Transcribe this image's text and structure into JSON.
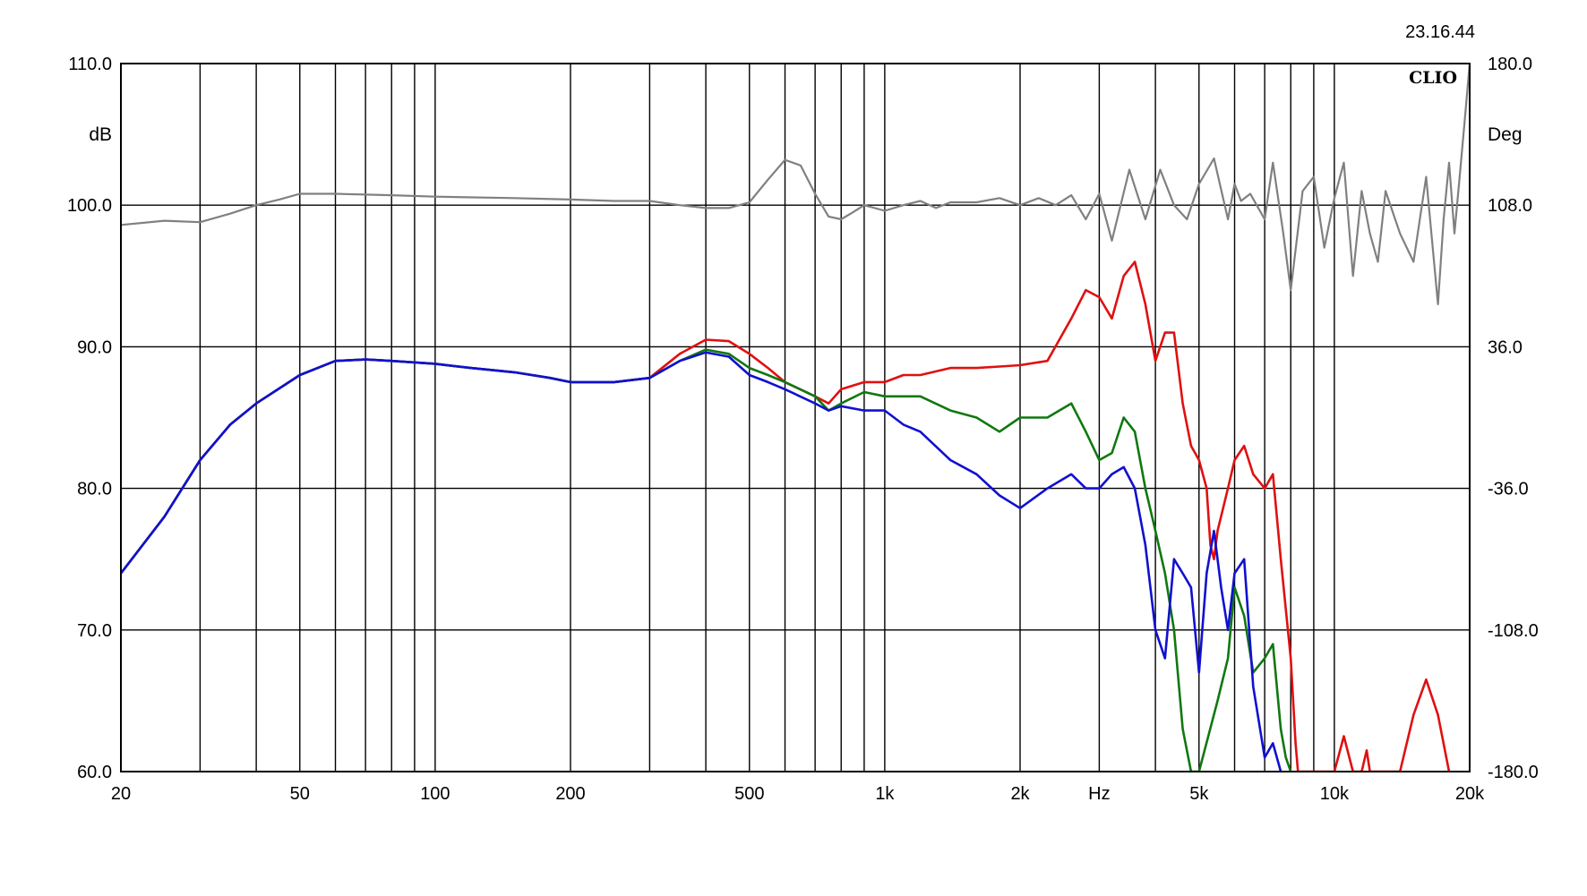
{
  "timestamp": "23.16.44",
  "brand": "CLIO",
  "chart_data": {
    "type": "line",
    "x_scale": "log",
    "xlim": [
      20,
      20000
    ],
    "ylim": [
      60,
      110
    ],
    "y2lim": [
      -180,
      180
    ],
    "xlabel": "Hz",
    "ylabel": "dB",
    "y2label": "Deg",
    "x_ticks": [
      {
        "value": 20,
        "label": "20"
      },
      {
        "value": 50,
        "label": "50"
      },
      {
        "value": 100,
        "label": "100"
      },
      {
        "value": 200,
        "label": "200"
      },
      {
        "value": 500,
        "label": "500"
      },
      {
        "value": 1000,
        "label": "1k"
      },
      {
        "value": 2000,
        "label": "2k"
      },
      {
        "value": 5000,
        "label": "5k"
      },
      {
        "value": 10000,
        "label": "10k"
      },
      {
        "value": 20000,
        "label": "20k"
      }
    ],
    "y_ticks": [
      "60.0",
      "70.0",
      "80.0",
      "90.0",
      "100.0",
      "110.0"
    ],
    "y2_ticks": [
      "-180.0",
      "-108.0",
      "-36.0",
      "36.0",
      "108.0",
      "180.0"
    ],
    "grid": true,
    "series": [
      {
        "color": "#808080",
        "axis": "right",
        "values": [
          [
            20,
            98.6
          ],
          [
            25,
            98.9
          ],
          [
            30,
            98.8
          ],
          [
            35,
            99.4
          ],
          [
            40,
            100
          ],
          [
            45,
            100.4
          ],
          [
            50,
            100.8
          ],
          [
            60,
            100.8
          ],
          [
            80,
            100.7
          ],
          [
            100,
            100.6
          ],
          [
            150,
            100.5
          ],
          [
            200,
            100.4
          ],
          [
            250,
            100.3
          ],
          [
            300,
            100.3
          ],
          [
            350,
            100
          ],
          [
            400,
            99.8
          ],
          [
            450,
            99.8
          ],
          [
            500,
            100.2
          ],
          [
            550,
            101.8
          ],
          [
            600,
            103.2
          ],
          [
            650,
            102.8
          ],
          [
            700,
            100.8
          ],
          [
            750,
            99.2
          ],
          [
            800,
            99
          ],
          [
            850,
            99.5
          ],
          [
            900,
            100
          ],
          [
            1000,
            99.6
          ],
          [
            1100,
            100
          ],
          [
            1200,
            100.3
          ],
          [
            1300,
            99.8
          ],
          [
            1400,
            100.2
          ],
          [
            1600,
            100.2
          ],
          [
            1800,
            100.5
          ],
          [
            2000,
            100
          ],
          [
            2200,
            100.5
          ],
          [
            2400,
            100
          ],
          [
            2600,
            100.7
          ],
          [
            2800,
            99
          ],
          [
            3000,
            100.8
          ],
          [
            3200,
            97.5
          ],
          [
            3500,
            102.5
          ],
          [
            3800,
            99
          ],
          [
            4100,
            102.5
          ],
          [
            4400,
            100
          ],
          [
            4700,
            99
          ],
          [
            5000,
            101.5
          ],
          [
            5400,
            103.3
          ],
          [
            5800,
            99
          ],
          [
            6000,
            101.5
          ],
          [
            6200,
            100.3
          ],
          [
            6500,
            100.8
          ],
          [
            7000,
            99
          ],
          [
            7300,
            103
          ],
          [
            7700,
            98
          ],
          [
            8000,
            94
          ],
          [
            8500,
            101
          ],
          [
            9000,
            102
          ],
          [
            9500,
            97
          ],
          [
            10000,
            100.5
          ],
          [
            10500,
            103
          ],
          [
            11000,
            95
          ],
          [
            11500,
            101
          ],
          [
            12000,
            98
          ],
          [
            12500,
            96
          ],
          [
            13000,
            101
          ],
          [
            14000,
            98
          ],
          [
            15000,
            96
          ],
          [
            16000,
            102
          ],
          [
            17000,
            93
          ],
          [
            17500,
            99
          ],
          [
            18000,
            103
          ],
          [
            18500,
            98
          ],
          [
            19000,
            102
          ],
          [
            19500,
            106
          ],
          [
            20000,
            110
          ]
        ]
      },
      {
        "color": "#e01010",
        "axis": "left",
        "values": [
          [
            20,
            74
          ],
          [
            25,
            78
          ],
          [
            30,
            82
          ],
          [
            35,
            84.5
          ],
          [
            40,
            86
          ],
          [
            50,
            88
          ],
          [
            60,
            89
          ],
          [
            70,
            89.1
          ],
          [
            80,
            89
          ],
          [
            100,
            88.8
          ],
          [
            120,
            88.5
          ],
          [
            150,
            88.2
          ],
          [
            180,
            87.8
          ],
          [
            200,
            87.5
          ],
          [
            250,
            87.5
          ],
          [
            300,
            87.8
          ],
          [
            350,
            89.5
          ],
          [
            400,
            90.5
          ],
          [
            450,
            90.4
          ],
          [
            500,
            89.5
          ],
          [
            550,
            88.5
          ],
          [
            600,
            87.5
          ],
          [
            700,
            86.5
          ],
          [
            750,
            86
          ],
          [
            800,
            87
          ],
          [
            900,
            87.5
          ],
          [
            1000,
            87.5
          ],
          [
            1100,
            88
          ],
          [
            1200,
            88
          ],
          [
            1400,
            88.5
          ],
          [
            1600,
            88.5
          ],
          [
            1800,
            88.6
          ],
          [
            2000,
            88.7
          ],
          [
            2300,
            89
          ],
          [
            2600,
            92
          ],
          [
            2800,
            94
          ],
          [
            3000,
            93.5
          ],
          [
            3200,
            92
          ],
          [
            3400,
            95
          ],
          [
            3600,
            96
          ],
          [
            3800,
            93
          ],
          [
            4000,
            89
          ],
          [
            4200,
            91
          ],
          [
            4400,
            91
          ],
          [
            4600,
            86
          ],
          [
            4800,
            83
          ],
          [
            5000,
            82
          ],
          [
            5200,
            80
          ],
          [
            5300,
            76
          ],
          [
            5400,
            75
          ],
          [
            5500,
            77
          ],
          [
            5800,
            80
          ],
          [
            6000,
            82
          ],
          [
            6300,
            83
          ],
          [
            6600,
            81
          ],
          [
            7000,
            80
          ],
          [
            7300,
            81
          ],
          [
            7600,
            75
          ],
          [
            8000,
            68
          ],
          [
            8200,
            62
          ],
          [
            8300,
            60
          ],
          [
            10000,
            60
          ],
          [
            10500,
            62.5
          ],
          [
            11000,
            60
          ],
          [
            11500,
            60
          ],
          [
            11800,
            61.5
          ],
          [
            12000,
            60
          ],
          [
            14000,
            60
          ],
          [
            15000,
            64
          ],
          [
            16000,
            66.5
          ],
          [
            17000,
            64
          ],
          [
            18000,
            60
          ]
        ]
      },
      {
        "color": "#107810",
        "axis": "left",
        "values": [
          [
            20,
            74
          ],
          [
            25,
            78
          ],
          [
            30,
            82
          ],
          [
            35,
            84.5
          ],
          [
            40,
            86
          ],
          [
            50,
            88
          ],
          [
            60,
            89
          ],
          [
            70,
            89.1
          ],
          [
            80,
            89
          ],
          [
            100,
            88.8
          ],
          [
            120,
            88.5
          ],
          [
            150,
            88.2
          ],
          [
            180,
            87.8
          ],
          [
            200,
            87.5
          ],
          [
            250,
            87.5
          ],
          [
            300,
            87.8
          ],
          [
            350,
            89
          ],
          [
            400,
            89.8
          ],
          [
            450,
            89.5
          ],
          [
            500,
            88.5
          ],
          [
            550,
            88
          ],
          [
            600,
            87.5
          ],
          [
            700,
            86.5
          ],
          [
            750,
            85.5
          ],
          [
            800,
            86
          ],
          [
            900,
            86.8
          ],
          [
            1000,
            86.5
          ],
          [
            1100,
            86.5
          ],
          [
            1200,
            86.5
          ],
          [
            1400,
            85.5
          ],
          [
            1600,
            85
          ],
          [
            1800,
            84
          ],
          [
            2000,
            85
          ],
          [
            2300,
            85
          ],
          [
            2600,
            86
          ],
          [
            2800,
            84
          ],
          [
            3000,
            82
          ],
          [
            3200,
            82.5
          ],
          [
            3400,
            85
          ],
          [
            3600,
            84
          ],
          [
            3800,
            80
          ],
          [
            4000,
            77
          ],
          [
            4200,
            74
          ],
          [
            4400,
            70
          ],
          [
            4600,
            63
          ],
          [
            4800,
            60
          ],
          [
            5000,
            60
          ],
          [
            5500,
            65
          ],
          [
            5800,
            68
          ],
          [
            6000,
            73
          ],
          [
            6300,
            71
          ],
          [
            6600,
            67
          ],
          [
            7000,
            68
          ],
          [
            7300,
            69
          ],
          [
            7600,
            63
          ],
          [
            7800,
            61
          ],
          [
            8000,
            60
          ]
        ]
      },
      {
        "color": "#1010d0",
        "axis": "left",
        "values": [
          [
            20,
            74
          ],
          [
            25,
            78
          ],
          [
            30,
            82
          ],
          [
            35,
            84.5
          ],
          [
            40,
            86
          ],
          [
            50,
            88
          ],
          [
            60,
            89
          ],
          [
            70,
            89.1
          ],
          [
            80,
            89
          ],
          [
            100,
            88.8
          ],
          [
            120,
            88.5
          ],
          [
            150,
            88.2
          ],
          [
            180,
            87.8
          ],
          [
            200,
            87.5
          ],
          [
            250,
            87.5
          ],
          [
            300,
            87.8
          ],
          [
            350,
            89
          ],
          [
            400,
            89.6
          ],
          [
            450,
            89.3
          ],
          [
            500,
            88
          ],
          [
            550,
            87.5
          ],
          [
            600,
            87
          ],
          [
            700,
            86
          ],
          [
            750,
            85.5
          ],
          [
            800,
            85.8
          ],
          [
            900,
            85.5
          ],
          [
            1000,
            85.5
          ],
          [
            1100,
            84.5
          ],
          [
            1200,
            84
          ],
          [
            1400,
            82
          ],
          [
            1600,
            81
          ],
          [
            1800,
            79.5
          ],
          [
            2000,
            78.6
          ],
          [
            2300,
            80
          ],
          [
            2600,
            81
          ],
          [
            2800,
            80
          ],
          [
            3000,
            80
          ],
          [
            3200,
            81
          ],
          [
            3400,
            81.5
          ],
          [
            3600,
            80
          ],
          [
            3800,
            76
          ],
          [
            4000,
            70
          ],
          [
            4200,
            68
          ],
          [
            4400,
            75
          ],
          [
            4600,
            74
          ],
          [
            4800,
            73
          ],
          [
            5000,
            67
          ],
          [
            5200,
            74
          ],
          [
            5400,
            77
          ],
          [
            5600,
            73
          ],
          [
            5800,
            70
          ],
          [
            6000,
            74
          ],
          [
            6300,
            75
          ],
          [
            6600,
            66
          ],
          [
            7000,
            61
          ],
          [
            7300,
            62
          ],
          [
            7600,
            60
          ]
        ]
      }
    ]
  }
}
